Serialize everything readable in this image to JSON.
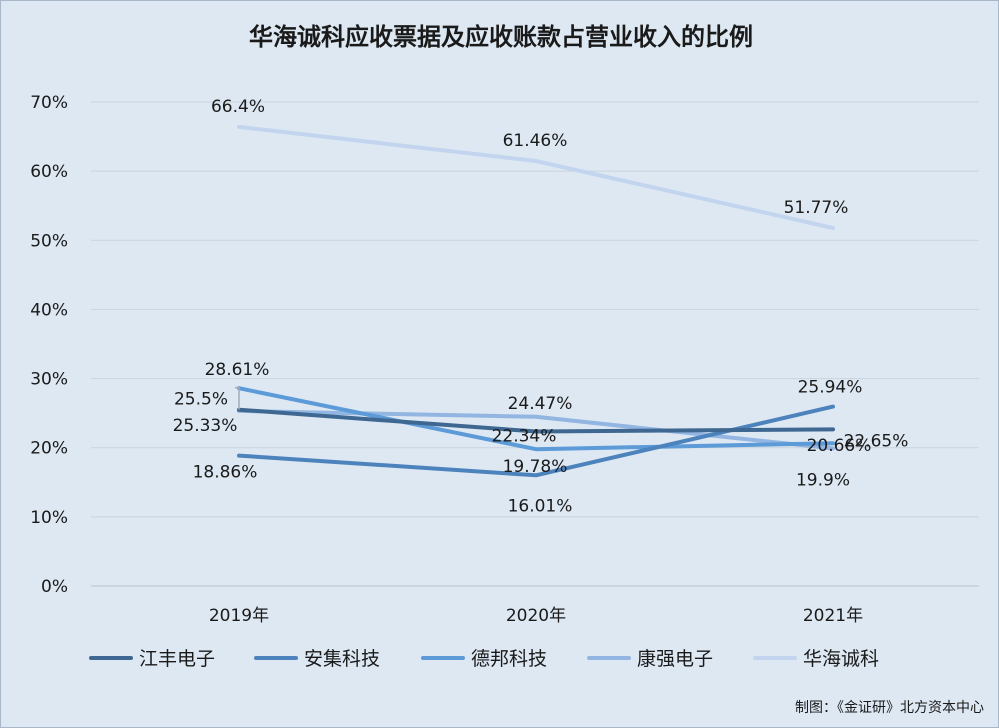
{
  "chart_data": {
    "type": "line",
    "title": "华海诚科应收票据及应收账款占营业收入的比例",
    "categories": [
      "2019年",
      "2020年",
      "2021年"
    ],
    "y_ticks": [
      "0%",
      "10%",
      "20%",
      "30%",
      "40%",
      "50%",
      "60%",
      "70%"
    ],
    "ylim": [
      0,
      70
    ],
    "grid": true,
    "legend_position": "bottom",
    "series": [
      {
        "name": "江丰电子",
        "values": [
          25.5,
          22.34,
          22.65
        ],
        "labels": [
          "25.5%",
          "22.34%",
          "22.65%"
        ],
        "color": "#3e6891"
      },
      {
        "name": "安集科技",
        "values": [
          18.86,
          16.01,
          25.94
        ],
        "labels": [
          "18.86%",
          "16.01%",
          "25.94%"
        ],
        "color": "#4d83bc"
      },
      {
        "name": "德邦科技",
        "values": [
          28.61,
          19.78,
          20.66
        ],
        "labels": [
          "28.61%",
          "19.78%",
          "20.66%"
        ],
        "color": "#5c9ad8"
      },
      {
        "name": "康强电子",
        "values": [
          25.33,
          24.47,
          19.9
        ],
        "labels": [
          "25.33%",
          "24.47%",
          "19.9%"
        ],
        "color": "#92b6e1"
      },
      {
        "name": "华海诚科",
        "values": [
          66.4,
          61.46,
          51.77
        ],
        "labels": [
          "66.4%",
          "61.46%",
          "51.77%"
        ],
        "color": "#c3d5ee"
      }
    ]
  },
  "footer": "制图：《金证研》北方资本中心"
}
